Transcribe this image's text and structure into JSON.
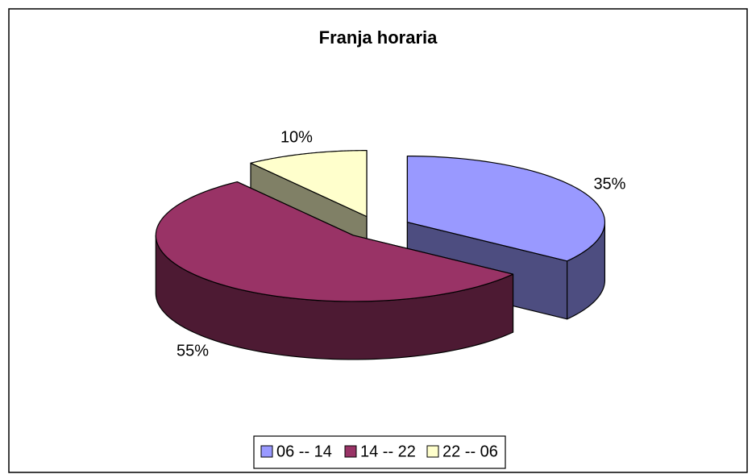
{
  "chart_data": {
    "type": "pie",
    "title": "Franja horaria",
    "categories": [
      "06 -- 14",
      "14 -- 22",
      "22 -- 06"
    ],
    "values": [
      35,
      55,
      10
    ],
    "value_labels": [
      "35%",
      "55%",
      "10%"
    ],
    "colors": [
      "#9999ff",
      "#993366",
      "#ffffcc"
    ],
    "legend": "bottom"
  }
}
